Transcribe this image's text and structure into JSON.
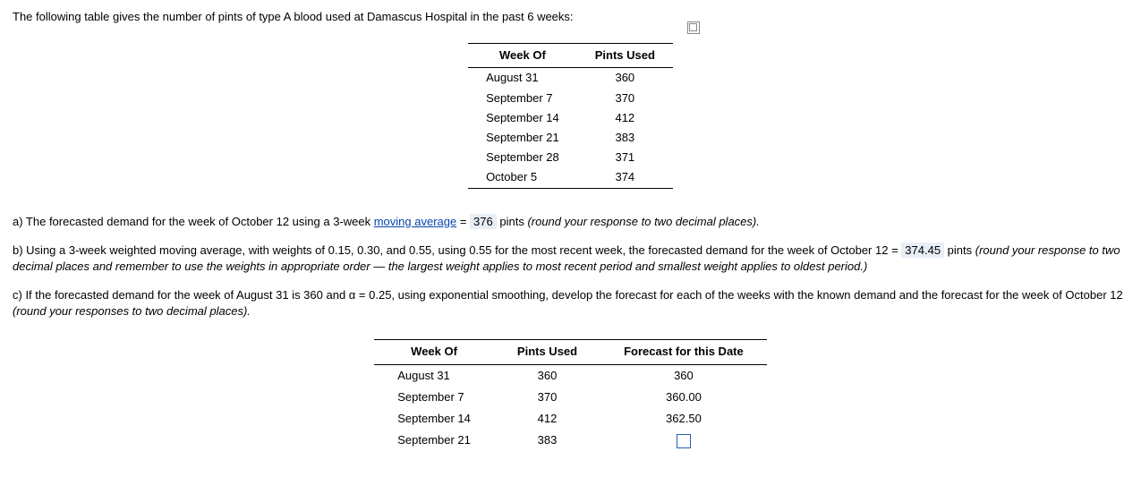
{
  "intro": "The following table gives the number of pints of type A blood used at Damascus Hospital in the past 6 weeks:",
  "table1": {
    "headers": [
      "Week Of",
      "Pints Used"
    ],
    "rows": [
      [
        "August 31",
        "360"
      ],
      [
        "September 7",
        "370"
      ],
      [
        "September 14",
        "412"
      ],
      [
        "September 21",
        "383"
      ],
      [
        "September 28",
        "371"
      ],
      [
        "October 5",
        "374"
      ]
    ]
  },
  "qa": {
    "pre": "a) The forecasted demand for the week of October 12 using a 3-week ",
    "link": "moving average",
    "mid": " = ",
    "answer": "376",
    "post": " pints ",
    "note": "(round your response to two decimal places)."
  },
  "qb": {
    "pre": "b) Using a 3-week weighted moving average, with weights of 0.15, 0.30, and 0.55, using 0.55 for the most recent week, the forecasted demand for the week of October 12 = ",
    "answer": "374.45",
    "post": " pints ",
    "note": "(round your response to two decimal places and remember to use the weights in appropriate order — the largest weight applies to most recent period and smallest weight applies to oldest period.)"
  },
  "qc": {
    "text": "c) If the forecasted demand for the week of August 31 is 360 and α = 0.25, using exponential smoothing, develop the forecast for each of the weeks with the known demand and the forecast for the week of October 12 ",
    "note": "(round your responses to two decimal places)."
  },
  "table2": {
    "headers": [
      "Week Of",
      "Pints Used",
      "Forecast for this Date"
    ],
    "rows": [
      {
        "week": "August 31",
        "pints": "360",
        "forecast": "360",
        "input": false
      },
      {
        "week": "September 7",
        "pints": "370",
        "forecast": "360.00",
        "input": false
      },
      {
        "week": "September 14",
        "pints": "412",
        "forecast": "362.50",
        "input": false
      },
      {
        "week": "September 21",
        "pints": "383",
        "forecast": "",
        "input": true
      }
    ]
  }
}
